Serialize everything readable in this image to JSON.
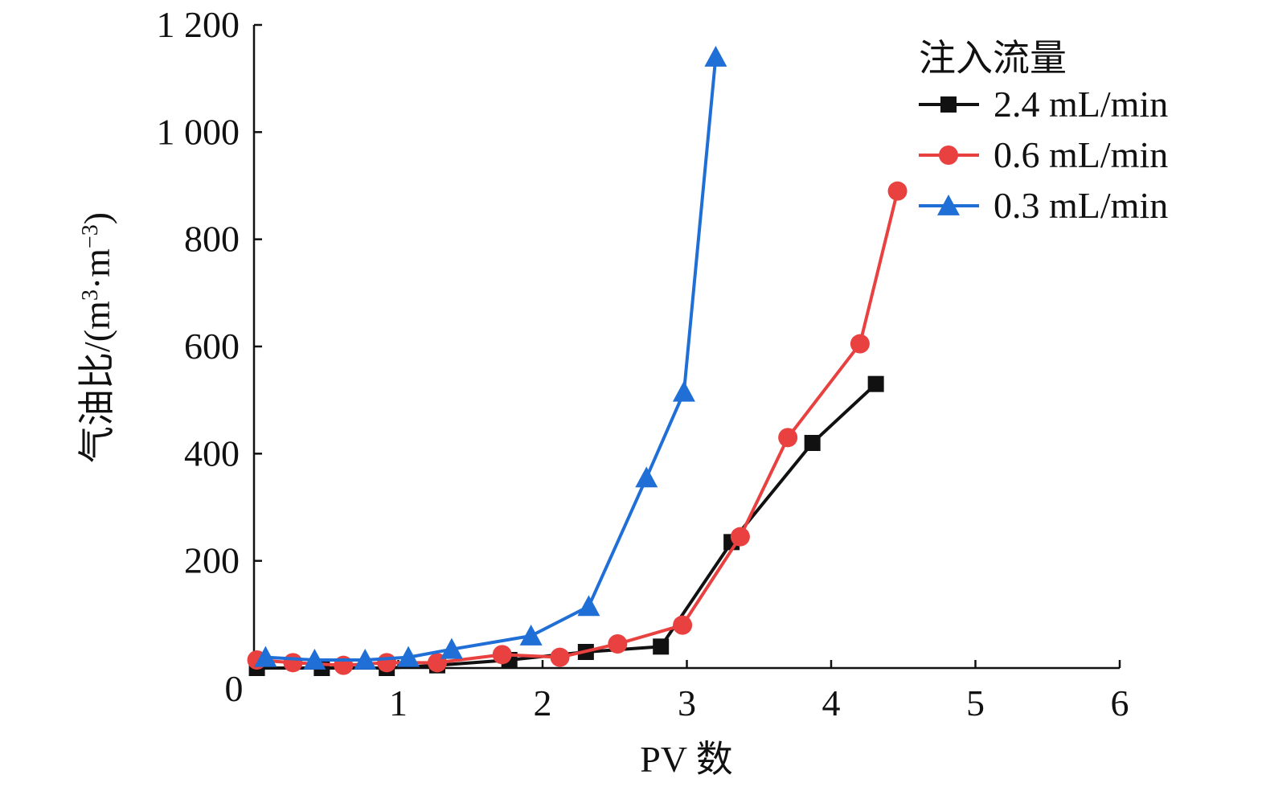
{
  "chart_data": {
    "type": "line",
    "title": "",
    "xlabel": "PV 数",
    "ylabel_main": "气油比/(m",
    "ylabel_sup1": "3",
    "ylabel_mid": "·m",
    "ylabel_sup2": "−3",
    "ylabel_end": ")",
    "xlim": [
      0,
      6
    ],
    "ylim": [
      0,
      1200
    ],
    "xticks": [
      {
        "value": 0,
        "label": "0"
      },
      {
        "value": 1,
        "label": "1"
      },
      {
        "value": 2,
        "label": "2"
      },
      {
        "value": 3,
        "label": "3"
      },
      {
        "value": 4,
        "label": "4"
      },
      {
        "value": 5,
        "label": "5"
      },
      {
        "value": 6,
        "label": "6"
      }
    ],
    "yticks": [
      {
        "value": 200,
        "label": "200"
      },
      {
        "value": 400,
        "label": "400"
      },
      {
        "value": 600,
        "label": "600"
      },
      {
        "value": 800,
        "label": "800"
      },
      {
        "value": 1000,
        "label": "1 000"
      },
      {
        "value": 1200,
        "label": "1 200"
      }
    ],
    "grid": false,
    "legend": {
      "title": "注入流量",
      "position": "top-right"
    },
    "series": [
      {
        "name": "2.4 mL/min",
        "color": "#111111",
        "marker": "square",
        "x": [
          0.02,
          0.47,
          0.92,
          1.27,
          1.77,
          2.3,
          2.82,
          3.31,
          3.87,
          4.31
        ],
        "y": [
          0,
          0,
          0,
          5,
          15,
          30,
          40,
          235,
          420,
          530
        ]
      },
      {
        "name": "0.6 mL/min",
        "color": "#e8413f",
        "marker": "circle",
        "x": [
          0.02,
          0.27,
          0.62,
          0.92,
          1.27,
          1.72,
          2.12,
          2.52,
          2.97,
          3.37,
          3.7,
          4.2,
          4.46
        ],
        "y": [
          15,
          10,
          5,
          10,
          10,
          25,
          20,
          45,
          80,
          245,
          430,
          605,
          890
        ]
      },
      {
        "name": "0.3 mL/min",
        "color": "#1f6fd6",
        "marker": "triangle",
        "x": [
          0.08,
          0.42,
          0.77,
          1.07,
          1.37,
          1.92,
          2.32,
          2.72,
          2.98,
          3.2
        ],
        "y": [
          20,
          15,
          15,
          20,
          35,
          60,
          115,
          355,
          515,
          1140
        ]
      }
    ]
  }
}
